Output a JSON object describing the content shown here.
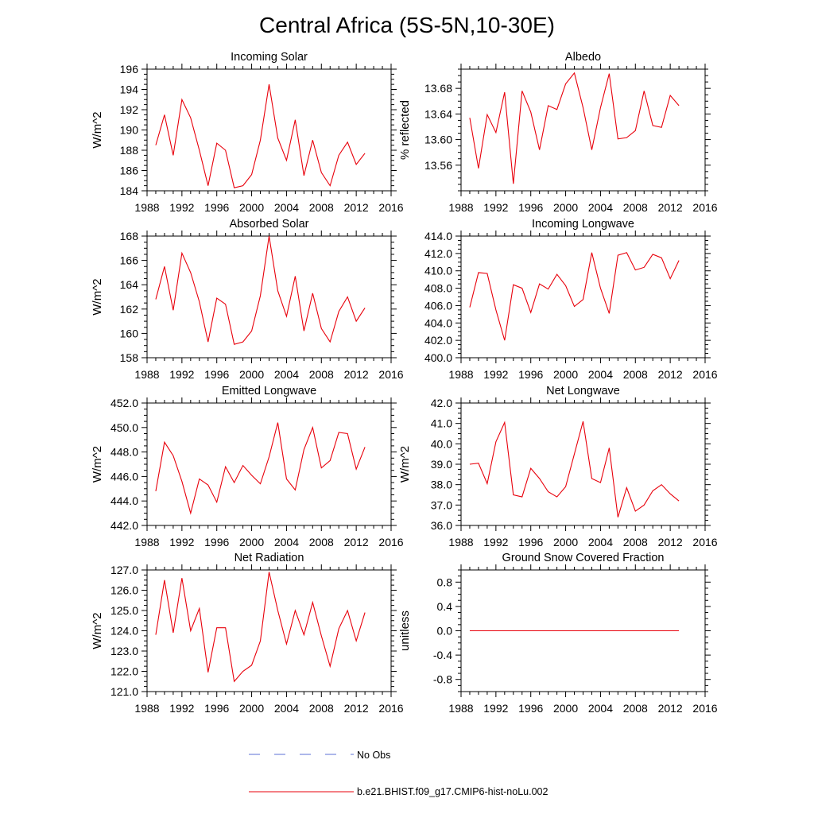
{
  "figure": {
    "title": "Central Africa (5S-5N,10-30E)",
    "series_color": "#e8000b",
    "obs_color": "#5b6fd6"
  },
  "legend": {
    "entries": [
      {
        "label": "No Obs",
        "style": "dashed",
        "color": "#5b6fd6"
      },
      {
        "label": "b.e21.BHIST.f09_g17.CMIP6-hist-noLu.002",
        "style": "solid",
        "color": "#e8000b"
      }
    ]
  },
  "chart_data": [
    {
      "type": "line",
      "title": "Incoming Solar",
      "ylabel": "W/m^2",
      "xlim": [
        1988,
        2016
      ],
      "ylim": [
        184,
        196
      ],
      "xticks": [
        1988,
        1992,
        1996,
        2000,
        2004,
        2008,
        2012,
        2016
      ],
      "yticks": [
        184,
        186,
        188,
        190,
        192,
        194,
        196
      ],
      "ytick_labels": [
        "184",
        "186",
        "188",
        "190",
        "192",
        "194",
        "196"
      ],
      "x": [
        1989,
        1990,
        1991,
        1992,
        1993,
        1994,
        1995,
        1996,
        1997,
        1998,
        1999,
        2000,
        2001,
        2002,
        2003,
        2004,
        2005,
        2006,
        2007,
        2008,
        2009,
        2010,
        2011,
        2012,
        2013
      ],
      "series": [
        {
          "values": [
            188.5,
            191.5,
            187.5,
            193.0,
            191.2,
            188.0,
            184.5,
            188.7,
            188.0,
            184.3,
            184.5,
            185.6,
            189.0,
            194.5,
            189.2,
            187.0,
            191.0,
            185.5,
            189.0,
            185.8,
            184.5,
            187.5,
            188.8,
            186.6,
            187.7
          ]
        }
      ]
    },
    {
      "type": "line",
      "title": "Albedo",
      "ylabel": "% reflected",
      "xlim": [
        1988,
        2016
      ],
      "ylim": [
        13.52,
        13.71
      ],
      "xticks": [
        1988,
        1992,
        1996,
        2000,
        2004,
        2008,
        2012,
        2016
      ],
      "yticks": [
        13.56,
        13.6,
        13.64,
        13.68
      ],
      "ytick_labels": [
        "13.56",
        "13.60",
        "13.64",
        "13.68"
      ],
      "x": [
        1989,
        1990,
        1991,
        1992,
        1993,
        1994,
        1995,
        1996,
        1997,
        1998,
        1999,
        2000,
        2001,
        2002,
        2003,
        2004,
        2005,
        2006,
        2007,
        2008,
        2009,
        2010,
        2011,
        2012,
        2013
      ],
      "series": [
        {
          "values": [
            13.634,
            13.555,
            13.639,
            13.611,
            13.674,
            13.531,
            13.676,
            13.643,
            13.584,
            13.653,
            13.647,
            13.687,
            13.704,
            13.65,
            13.584,
            13.65,
            13.703,
            13.601,
            13.603,
            13.614,
            13.676,
            13.622,
            13.619,
            13.669,
            13.653
          ]
        }
      ]
    },
    {
      "type": "line",
      "title": "Absorbed Solar",
      "ylabel": "W/m^2",
      "xlim": [
        1988,
        2016
      ],
      "ylim": [
        158,
        168
      ],
      "xticks": [
        1988,
        1992,
        1996,
        2000,
        2004,
        2008,
        2012,
        2016
      ],
      "yticks": [
        158,
        160,
        162,
        164,
        166,
        168
      ],
      "ytick_labels": [
        "158",
        "160",
        "162",
        "164",
        "166",
        "168"
      ],
      "x": [
        1989,
        1990,
        1991,
        1992,
        1993,
        1994,
        1995,
        1996,
        1997,
        1998,
        1999,
        2000,
        2001,
        2002,
        2003,
        2004,
        2005,
        2006,
        2007,
        2008,
        2009,
        2010,
        2011,
        2012,
        2013
      ],
      "series": [
        {
          "values": [
            162.8,
            165.5,
            161.9,
            166.6,
            165.0,
            162.6,
            159.3,
            162.9,
            162.4,
            159.1,
            159.3,
            160.2,
            163.1,
            168.0,
            163.5,
            161.4,
            164.7,
            160.2,
            163.3,
            160.4,
            159.3,
            161.8,
            163.0,
            161.0,
            162.1
          ]
        }
      ]
    },
    {
      "type": "line",
      "title": "Incoming Longwave",
      "ylabel": "",
      "xlim": [
        1988,
        2016
      ],
      "ylim": [
        400,
        414
      ],
      "xticks": [
        1988,
        1992,
        1996,
        2000,
        2004,
        2008,
        2012,
        2016
      ],
      "yticks": [
        400,
        402,
        404,
        406,
        408,
        410,
        412,
        414
      ],
      "ytick_labels": [
        "400.0",
        "402.0",
        "404.0",
        "406.0",
        "408.0",
        "410.0",
        "412.0",
        "414.0"
      ],
      "x": [
        1989,
        1990,
        1991,
        1992,
        1993,
        1994,
        1995,
        1996,
        1997,
        1998,
        1999,
        2000,
        2001,
        2002,
        2003,
        2004,
        2005,
        2006,
        2007,
        2008,
        2009,
        2010,
        2011,
        2012,
        2013
      ],
      "series": [
        {
          "values": [
            405.8,
            409.8,
            409.7,
            405.5,
            402.0,
            408.4,
            408.0,
            405.2,
            408.5,
            407.9,
            409.6,
            408.3,
            405.9,
            406.7,
            412.1,
            408.0,
            405.1,
            411.8,
            412.1,
            410.1,
            410.4,
            411.9,
            411.5,
            409.1,
            411.2
          ]
        }
      ]
    },
    {
      "type": "line",
      "title": "Emitted Longwave",
      "ylabel": "W/m^2",
      "xlim": [
        1988,
        2016
      ],
      "ylim": [
        442,
        452
      ],
      "xticks": [
        1988,
        1992,
        1996,
        2000,
        2004,
        2008,
        2012,
        2016
      ],
      "yticks": [
        442,
        444,
        446,
        448,
        450,
        452
      ],
      "ytick_labels": [
        "442.0",
        "444.0",
        "446.0",
        "448.0",
        "450.0",
        "452.0"
      ],
      "x": [
        1989,
        1990,
        1991,
        1992,
        1993,
        1994,
        1995,
        1996,
        1997,
        1998,
        1999,
        2000,
        2001,
        2002,
        2003,
        2004,
        2005,
        2006,
        2007,
        2008,
        2009,
        2010,
        2011,
        2012,
        2013
      ],
      "series": [
        {
          "values": [
            444.8,
            448.8,
            447.7,
            445.6,
            443.0,
            445.8,
            445.3,
            443.9,
            446.8,
            445.5,
            446.9,
            446.1,
            445.4,
            447.6,
            450.4,
            445.8,
            444.9,
            448.2,
            450.0,
            446.7,
            447.3,
            449.6,
            449.5,
            446.6,
            448.4
          ]
        }
      ]
    },
    {
      "type": "line",
      "title": "Net Longwave",
      "ylabel": "W/m^2",
      "xlim": [
        1988,
        2016
      ],
      "ylim": [
        36,
        42
      ],
      "xticks": [
        1988,
        1992,
        1996,
        2000,
        2004,
        2008,
        2012,
        2016
      ],
      "yticks": [
        36,
        37,
        38,
        39,
        40,
        41,
        42
      ],
      "ytick_labels": [
        "36.0",
        "37.0",
        "38.0",
        "39.0",
        "40.0",
        "41.0",
        "42.0"
      ],
      "x": [
        1989,
        1990,
        1991,
        1992,
        1993,
        1994,
        1995,
        1996,
        1997,
        1998,
        1999,
        2000,
        2001,
        2002,
        2003,
        2004,
        2005,
        2006,
        2007,
        2008,
        2009,
        2010,
        2011,
        2012,
        2013
      ],
      "series": [
        {
          "values": [
            39.0,
            39.05,
            38.05,
            40.1,
            41.05,
            37.5,
            37.4,
            38.8,
            38.3,
            37.65,
            37.4,
            37.9,
            39.5,
            41.1,
            38.3,
            38.1,
            39.8,
            36.4,
            37.85,
            36.7,
            37.0,
            37.7,
            38.0,
            37.55,
            37.2
          ]
        }
      ]
    },
    {
      "type": "line",
      "title": "Net Radiation",
      "ylabel": "W/m^2",
      "xlim": [
        1988,
        2016
      ],
      "ylim": [
        121,
        127
      ],
      "xticks": [
        1988,
        1992,
        1996,
        2000,
        2004,
        2008,
        2012,
        2016
      ],
      "yticks": [
        121,
        122,
        123,
        124,
        125,
        126,
        127
      ],
      "ytick_labels": [
        "121.0",
        "122.0",
        "123.0",
        "124.0",
        "125.0",
        "126.0",
        "127.0"
      ],
      "x": [
        1989,
        1990,
        1991,
        1992,
        1993,
        1994,
        1995,
        1996,
        1997,
        1998,
        1999,
        2000,
        2001,
        2002,
        2003,
        2004,
        2005,
        2006,
        2007,
        2008,
        2009,
        2010,
        2011,
        2012,
        2013
      ],
      "series": [
        {
          "values": [
            123.8,
            126.5,
            123.9,
            126.6,
            124.0,
            125.1,
            121.95,
            124.15,
            124.15,
            121.5,
            122.0,
            122.3,
            123.5,
            126.9,
            125.0,
            123.35,
            125.0,
            123.8,
            125.4,
            123.75,
            122.25,
            124.1,
            125.0,
            123.5,
            124.9
          ]
        }
      ]
    },
    {
      "type": "line",
      "title": "Ground Snow Covered Fraction",
      "ylabel": "unitless",
      "xlim": [
        1988,
        2016
      ],
      "ylim": [
        -1.0,
        1.0
      ],
      "xticks": [
        1988,
        1992,
        1996,
        2000,
        2004,
        2008,
        2012,
        2016
      ],
      "yticks": [
        -0.8,
        -0.4,
        0.0,
        0.4,
        0.8
      ],
      "ytick_labels": [
        "-0.8",
        "-0.4",
        "0.0",
        "0.4",
        "0.8"
      ],
      "x": [
        1989,
        1990,
        1991,
        1992,
        1993,
        1994,
        1995,
        1996,
        1997,
        1998,
        1999,
        2000,
        2001,
        2002,
        2003,
        2004,
        2005,
        2006,
        2007,
        2008,
        2009,
        2010,
        2011,
        2012,
        2013
      ],
      "series": [
        {
          "values": [
            0,
            0,
            0,
            0,
            0,
            0,
            0,
            0,
            0,
            0,
            0,
            0,
            0,
            0,
            0,
            0,
            0,
            0,
            0,
            0,
            0,
            0,
            0,
            0,
            0
          ]
        }
      ]
    }
  ]
}
